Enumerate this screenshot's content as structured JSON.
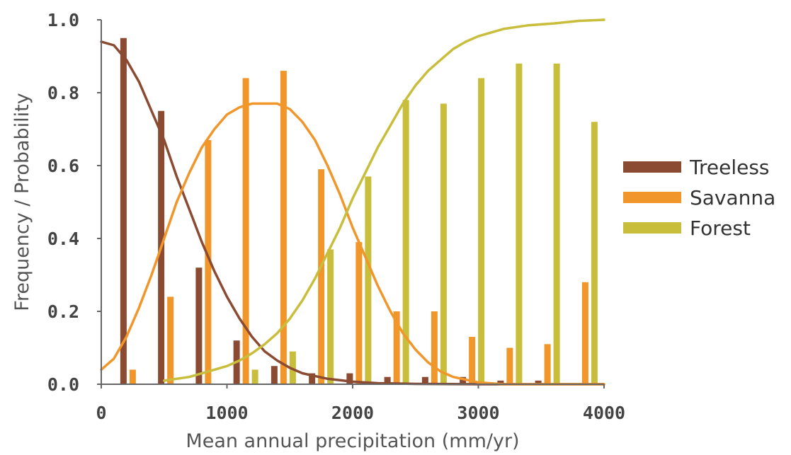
{
  "chart_data": {
    "type": "bar",
    "xlabel": "Mean annual precipitation (mm/yr)",
    "ylabel": "Frequency / Probability",
    "xlim": [
      0,
      4000
    ],
    "ylim": [
      0,
      1.0
    ],
    "x_ticks": [
      "0",
      "1000",
      "2000",
      "3000",
      "4000"
    ],
    "y_ticks": [
      "0.0",
      "0.2",
      "0.4",
      "0.6",
      "0.8",
      "1.0"
    ],
    "legend_position": "right",
    "grid": false,
    "bin_centers": [
      250,
      550,
      850,
      1150,
      1450,
      1750,
      2050,
      2350,
      2650,
      2950,
      3250,
      3550,
      3850
    ],
    "series": [
      {
        "name": "Treeless",
        "color": "#8b4a32",
        "bars": [
          0.95,
          0.75,
          0.32,
          0.12,
          0.05,
          0.03,
          0.03,
          0.02,
          0.02,
          0.02,
          0.01,
          0.01,
          0.0
        ],
        "curve": [
          [
            0,
            0.94
          ],
          [
            100,
            0.93
          ],
          [
            200,
            0.89
          ],
          [
            300,
            0.83
          ],
          [
            400,
            0.75
          ],
          [
            500,
            0.67
          ],
          [
            600,
            0.57
          ],
          [
            700,
            0.48
          ],
          [
            800,
            0.39
          ],
          [
            900,
            0.31
          ],
          [
            1000,
            0.24
          ],
          [
            1100,
            0.18
          ],
          [
            1200,
            0.13
          ],
          [
            1300,
            0.09
          ],
          [
            1400,
            0.065
          ],
          [
            1500,
            0.045
          ],
          [
            1600,
            0.03
          ],
          [
            1800,
            0.015
          ],
          [
            2000,
            0.007
          ],
          [
            2200,
            0.003
          ],
          [
            2500,
            0.001
          ],
          [
            3000,
            0.0
          ],
          [
            4000,
            0.0
          ]
        ]
      },
      {
        "name": "Savanna",
        "color": "#f0962a",
        "bars": [
          0.04,
          0.24,
          0.67,
          0.84,
          0.86,
          0.59,
          0.39,
          0.2,
          0.2,
          0.13,
          0.1,
          0.11,
          0.28
        ],
        "curve": [
          [
            0,
            0.04
          ],
          [
            100,
            0.07
          ],
          [
            200,
            0.13
          ],
          [
            300,
            0.21
          ],
          [
            400,
            0.3
          ],
          [
            500,
            0.4
          ],
          [
            600,
            0.5
          ],
          [
            700,
            0.58
          ],
          [
            800,
            0.65
          ],
          [
            900,
            0.7
          ],
          [
            1000,
            0.74
          ],
          [
            1100,
            0.76
          ],
          [
            1200,
            0.77
          ],
          [
            1300,
            0.77
          ],
          [
            1400,
            0.77
          ],
          [
            1500,
            0.755
          ],
          [
            1600,
            0.72
          ],
          [
            1700,
            0.67
          ],
          [
            1800,
            0.6
          ],
          [
            1900,
            0.52
          ],
          [
            2000,
            0.43
          ],
          [
            2100,
            0.35
          ],
          [
            2200,
            0.27
          ],
          [
            2300,
            0.2
          ],
          [
            2400,
            0.14
          ],
          [
            2500,
            0.095
          ],
          [
            2600,
            0.06
          ],
          [
            2700,
            0.035
          ],
          [
            2800,
            0.02
          ],
          [
            3000,
            0.005
          ],
          [
            3200,
            0.0
          ],
          [
            4000,
            0.0
          ]
        ]
      },
      {
        "name": "Forest",
        "color": "#c9bd3c",
        "bars": [
          0.0,
          0.0,
          0.0,
          0.04,
          0.09,
          0.37,
          0.57,
          0.78,
          0.77,
          0.84,
          0.88,
          0.88,
          0.72
        ],
        "curve": [
          [
            500,
            0.01
          ],
          [
            700,
            0.02
          ],
          [
            900,
            0.04
          ],
          [
            1000,
            0.05
          ],
          [
            1100,
            0.065
          ],
          [
            1200,
            0.085
          ],
          [
            1300,
            0.11
          ],
          [
            1400,
            0.14
          ],
          [
            1500,
            0.18
          ],
          [
            1600,
            0.23
          ],
          [
            1700,
            0.29
          ],
          [
            1800,
            0.36
          ],
          [
            1900,
            0.43
          ],
          [
            2000,
            0.51
          ],
          [
            2100,
            0.58
          ],
          [
            2200,
            0.65
          ],
          [
            2300,
            0.71
          ],
          [
            2400,
            0.77
          ],
          [
            2500,
            0.82
          ],
          [
            2600,
            0.86
          ],
          [
            2700,
            0.89
          ],
          [
            2800,
            0.92
          ],
          [
            2900,
            0.94
          ],
          [
            3000,
            0.955
          ],
          [
            3200,
            0.975
          ],
          [
            3400,
            0.985
          ],
          [
            3600,
            0.99
          ],
          [
            3800,
            0.997
          ],
          [
            4000,
            1.0
          ]
        ]
      }
    ]
  }
}
